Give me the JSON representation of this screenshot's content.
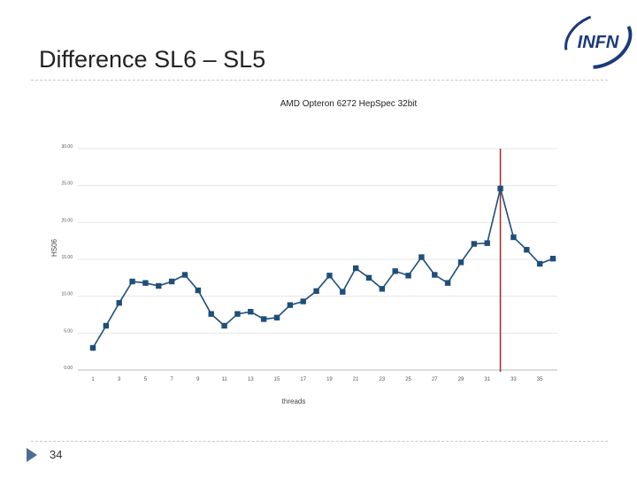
{
  "slide": {
    "title": "Difference SL6 – SL5",
    "page_number": "34",
    "logo_text": "INFN"
  },
  "colors": {
    "series": "#1f4e79",
    "marker_line": "#a52a2a",
    "grid": "#e4e4e4",
    "logo": "#1a3a7a"
  },
  "chart_data": {
    "type": "line",
    "title": "AMD Opteron 6272 HepSpec 32bit",
    "xlabel": "threads",
    "ylabel": "HS06",
    "ylim": [
      0,
      30
    ],
    "yticks": [
      "0.00",
      "5.00",
      "10.00",
      "15.00",
      "20.00",
      "25.00",
      "30.00"
    ],
    "xticks": [
      "1",
      "3",
      "5",
      "7",
      "9",
      "11",
      "13",
      "15",
      "17",
      "19",
      "21",
      "23",
      "25",
      "27",
      "29",
      "31",
      "33",
      "35"
    ],
    "grid": true,
    "reference_line_x": 32,
    "series": [
      {
        "x": [
          1,
          2,
          3,
          4,
          5,
          6,
          7,
          8,
          9,
          10,
          11,
          12,
          13,
          14,
          15,
          16,
          17,
          18,
          19,
          20,
          21,
          22,
          23,
          24,
          25,
          26,
          27,
          28,
          29,
          30,
          31,
          32,
          33,
          34,
          35,
          36
        ],
        "values": [
          3.0,
          6.0,
          9.1,
          12.0,
          11.8,
          11.4,
          12.0,
          12.9,
          10.8,
          7.6,
          6.0,
          7.6,
          7.9,
          6.9,
          7.1,
          8.8,
          9.3,
          10.7,
          12.8,
          10.6,
          13.8,
          12.5,
          11.0,
          13.4,
          12.8,
          15.3,
          12.9,
          11.8,
          14.6,
          17.1,
          17.2,
          24.6,
          18.0,
          16.3,
          14.4,
          15.1
        ]
      }
    ]
  }
}
